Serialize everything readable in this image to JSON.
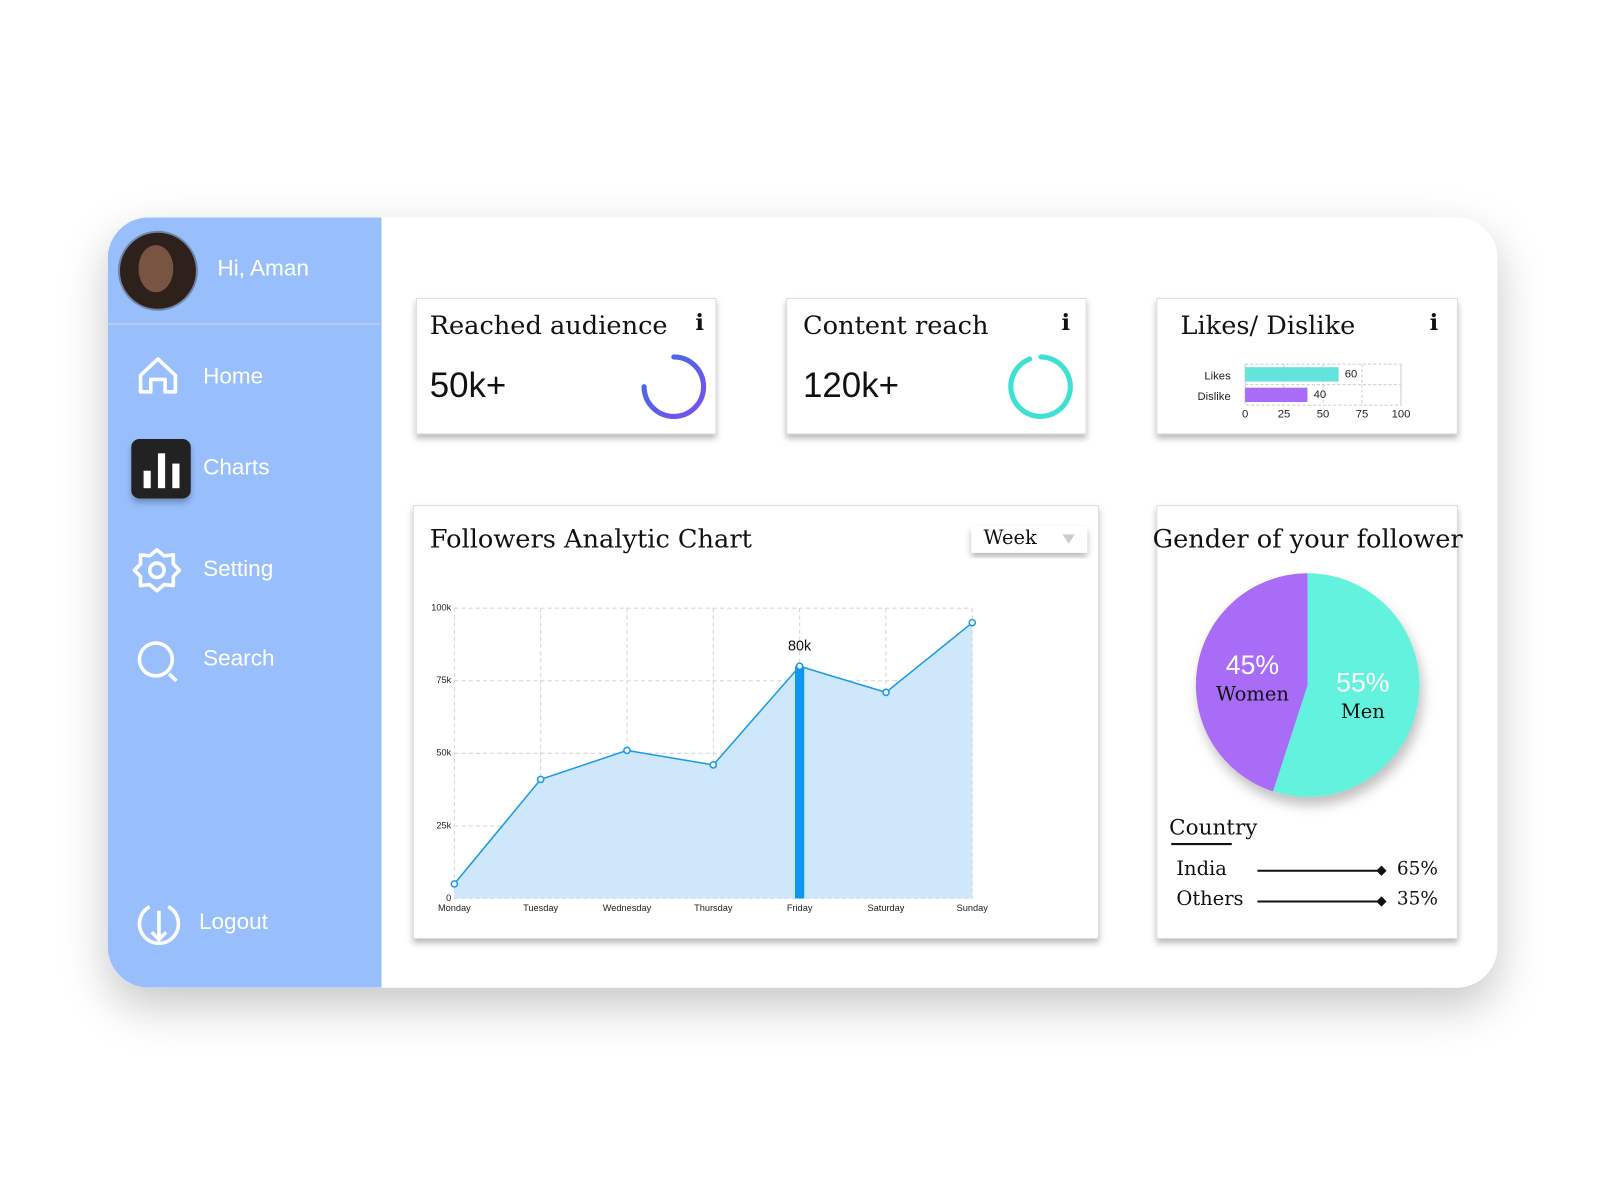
{
  "sidebar": {
    "greeting": "Hi, Aman",
    "menu": [
      "Home",
      "Charts",
      "Setting",
      "Search"
    ],
    "logout": "Logout"
  },
  "cards": [
    {
      "title": "Reached audience",
      "value": "50k+",
      "info": "i"
    },
    {
      "title": "Content reach",
      "value": "120k+",
      "info": "i"
    }
  ],
  "likes_card": {
    "info": "i"
  },
  "dropdown": "Week",
  "country": {
    "title": "Country",
    "rows": [
      [
        "India",
        "65%"
      ],
      [
        "Others",
        "35%"
      ]
    ]
  },
  "chart_data": [
    {
      "type": "bar",
      "title": "Likes/ Dislike",
      "orientation": "horizontal",
      "categories": [
        "Likes",
        "Dislike"
      ],
      "values": [
        60,
        40
      ],
      "colors": [
        "#62e3dc",
        "#a86cf7"
      ],
      "xlim": [
        0,
        100
      ],
      "xticks": [
        0,
        25,
        50,
        75,
        100
      ],
      "grid": true
    },
    {
      "type": "line",
      "title": "Followers Analytic Chart",
      "categories": [
        "Monday",
        "Tuesday",
        "Wednesday",
        "Thursday",
        "Friday",
        "Saturday",
        "Sunday"
      ],
      "values": [
        5000,
        41000,
        51000,
        46000,
        80000,
        71000,
        95000
      ],
      "value_labels": [
        null,
        null,
        null,
        null,
        "80k",
        null,
        null
      ],
      "color": "#1a9ae8",
      "area_color": "#cfe7fa",
      "highlight_color": "#0d96f2",
      "ylim": [
        0,
        100000
      ],
      "yticks": [
        {
          "value": 0,
          "label": "0"
        },
        {
          "value": 25000,
          "label": "25k"
        },
        {
          "value": 50000,
          "label": "50k"
        },
        {
          "value": 75000,
          "label": "75k"
        },
        {
          "value": 100000,
          "label": "100k"
        }
      ],
      "grid": true
    },
    {
      "type": "pie",
      "title": "Gender of your follower",
      "categories": [
        "Women",
        "Men"
      ],
      "values": [
        45,
        55
      ],
      "value_labels": [
        "45%",
        "55%"
      ],
      "colors": [
        "#a86cf7",
        "#62f2de"
      ]
    }
  ]
}
